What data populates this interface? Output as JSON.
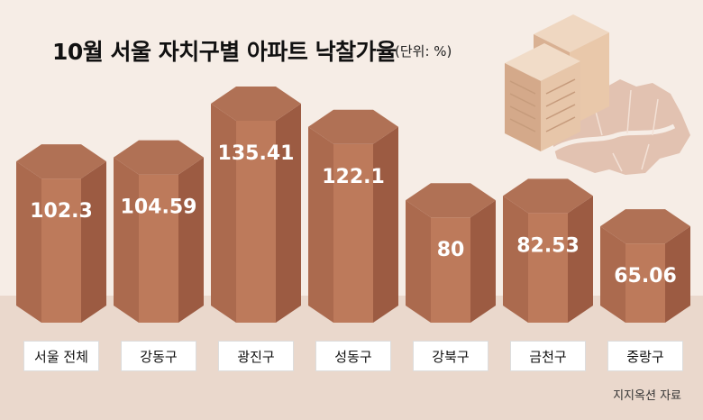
{
  "title": "10월 서울 자치구별 아파트 낙찰가율",
  "unit": "(단위: %)",
  "source": "지지옥션 자료",
  "colors": {
    "top": "#b07155",
    "left": "#ab6a4e",
    "front": "#bd7a5b",
    "right": "#9c5b42",
    "floor": "#ead8cc",
    "map": "#e2c2b1",
    "building": "#e7c6a9"
  },
  "chart_data": {
    "type": "bar",
    "title": "10월 서울 자치구별 아파트 낙찰가율",
    "unit": "%",
    "categories": [
      "서울 전체",
      "강동구",
      "광진구",
      "성동구",
      "강북구",
      "금천구",
      "중랑구"
    ],
    "values": [
      102.3,
      104.59,
      135.41,
      122.1,
      80,
      82.53,
      65.06
    ],
    "value_labels": [
      "102.3",
      "104.59",
      "135.41",
      "122.1",
      "80",
      "82.53",
      "65.06"
    ],
    "ylim": [
      0,
      140
    ],
    "grid": false,
    "legend": "none"
  }
}
